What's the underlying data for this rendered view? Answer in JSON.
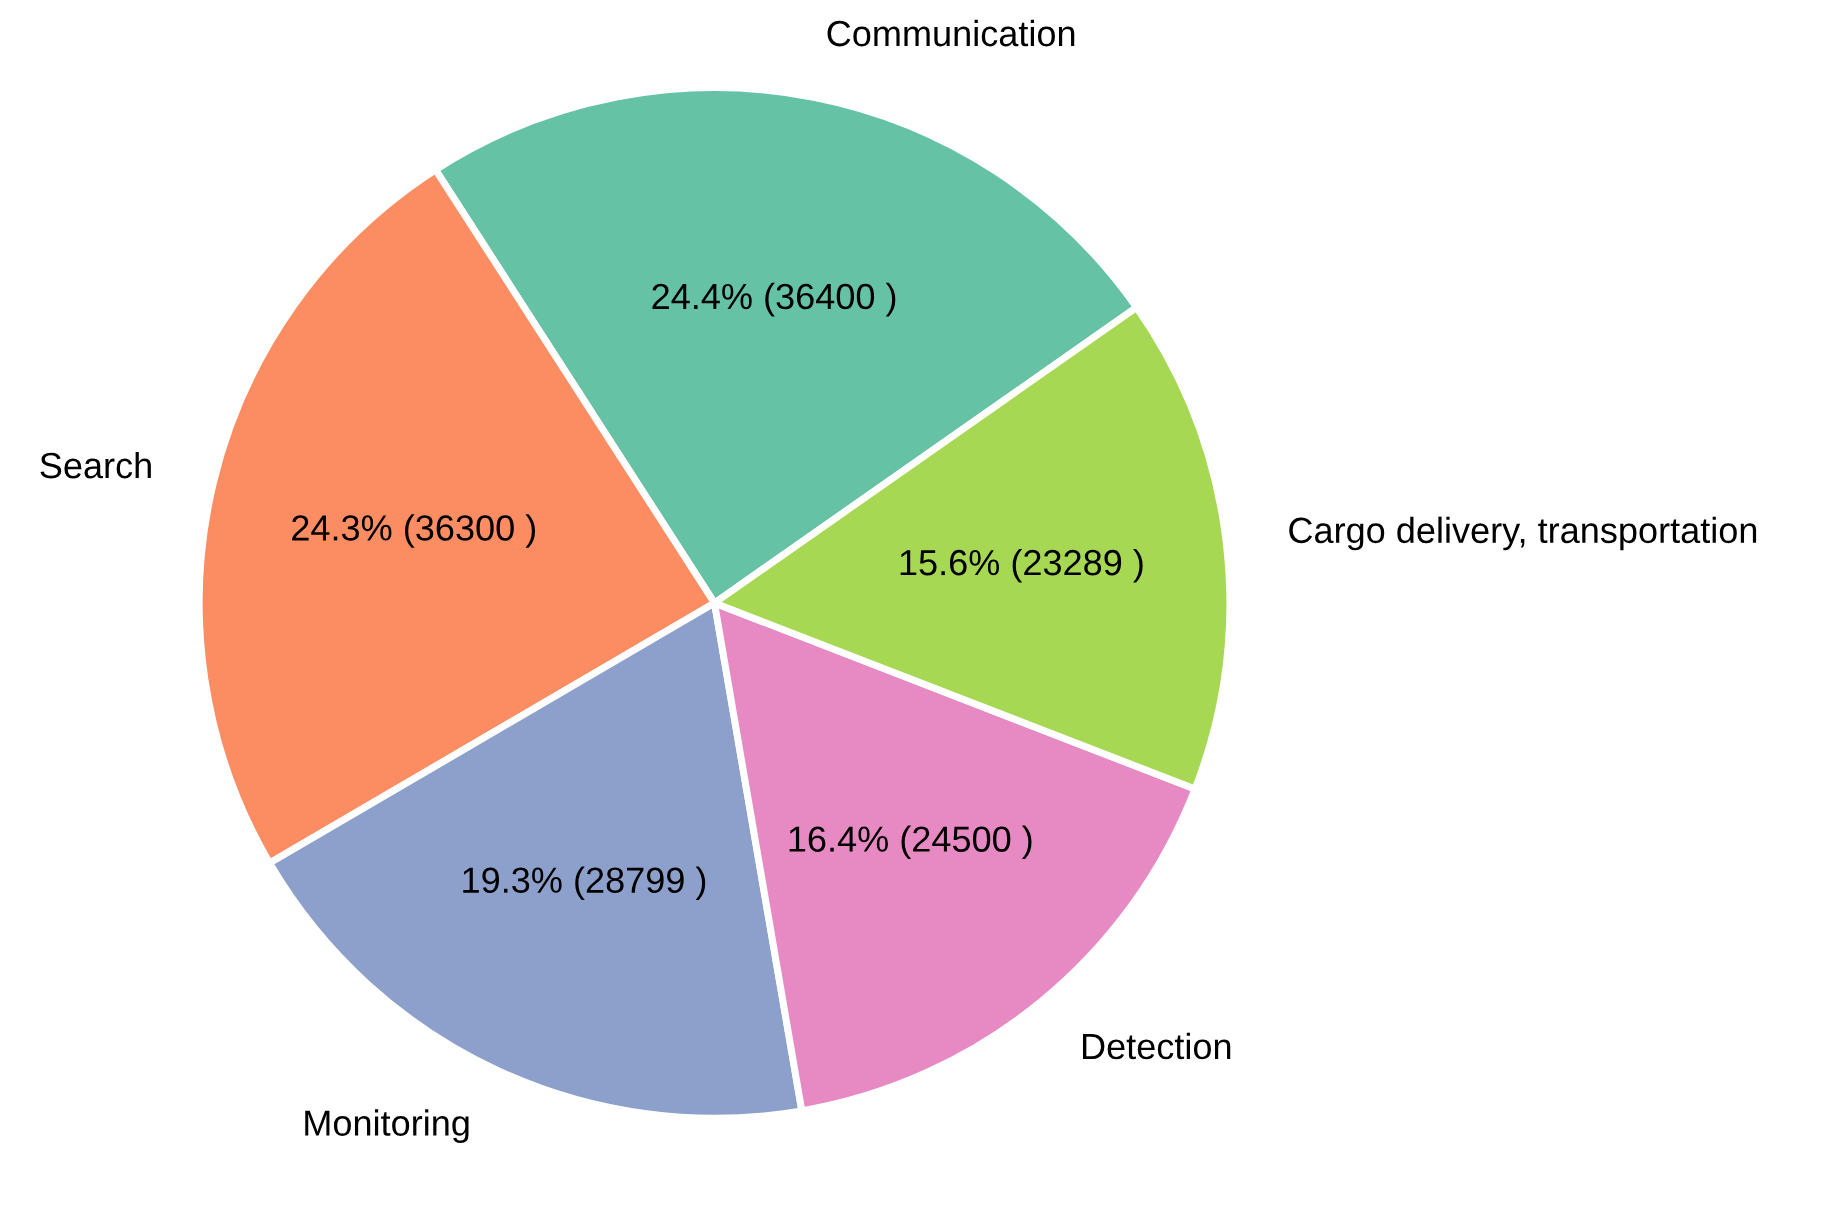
{
  "chart_data": {
    "type": "pie",
    "categories": [
      "Communication",
      "Search",
      "Monitoring",
      "Detection",
      "Cargo delivery, transportation"
    ],
    "values": [
      36400,
      36300,
      28799,
      24500,
      23289
    ],
    "colors": [
      "#66c2a5",
      "#fc8d62",
      "#8da0cb",
      "#e78ac3",
      "#a6d854"
    ],
    "value_labels": [
      "24.4% (36400 )",
      "24.3% (36300 )",
      "19.3% (28799 )",
      "16.4% (24500 )",
      "15.6% (23289 )"
    ]
  }
}
